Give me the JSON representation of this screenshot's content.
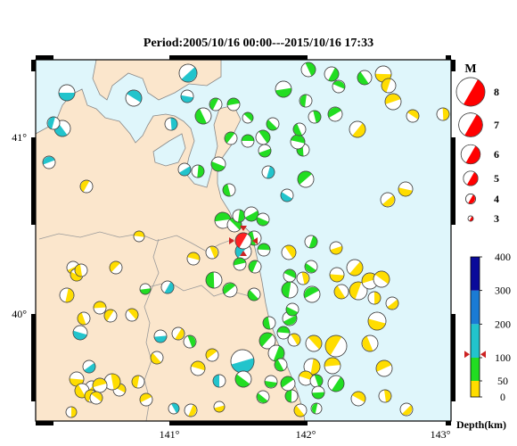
{
  "title": "Period:2005/10/16 00:00---2015/10/16 17:33",
  "map": {
    "x_ticks": [
      "141°",
      "142°",
      "143°"
    ],
    "y_ticks": [
      "41°",
      "40°"
    ],
    "colors": {
      "sea": "#dff6fb",
      "land": "#fbe6cc",
      "coast": "#888888",
      "frame": "#000000"
    }
  },
  "magnitude_legend": {
    "title": "M",
    "items": [
      {
        "label": "8",
        "value": 8
      },
      {
        "label": "7",
        "value": 7
      },
      {
        "label": "6",
        "value": 6
      },
      {
        "label": "5",
        "value": 5
      },
      {
        "label": "4",
        "value": 4
      },
      {
        "label": "3",
        "value": 3
      }
    ],
    "color": "#ff0000"
  },
  "depth_scale": {
    "title": "Depth(km)",
    "ticks": [
      "400",
      "300",
      "200",
      "100",
      "50",
      "0"
    ],
    "bands": [
      {
        "from": 0,
        "to": 50,
        "color": "#ffdd00"
      },
      {
        "from": 50,
        "to": 100,
        "color": "#22dd22"
      },
      {
        "from": 100,
        "to": 200,
        "color": "#22c4cc"
      },
      {
        "from": 200,
        "to": 300,
        "color": "#1a7bd4"
      },
      {
        "from": 300,
        "to": 400,
        "color": "#0a0a9a"
      }
    ],
    "marker_depth": 110,
    "marker_color": "#cc2222"
  },
  "highlight_event": {
    "lon": 141.58,
    "lat": 40.44,
    "magnitude": 5.3,
    "depth_km": 110,
    "color": "#ff2222"
  }
}
